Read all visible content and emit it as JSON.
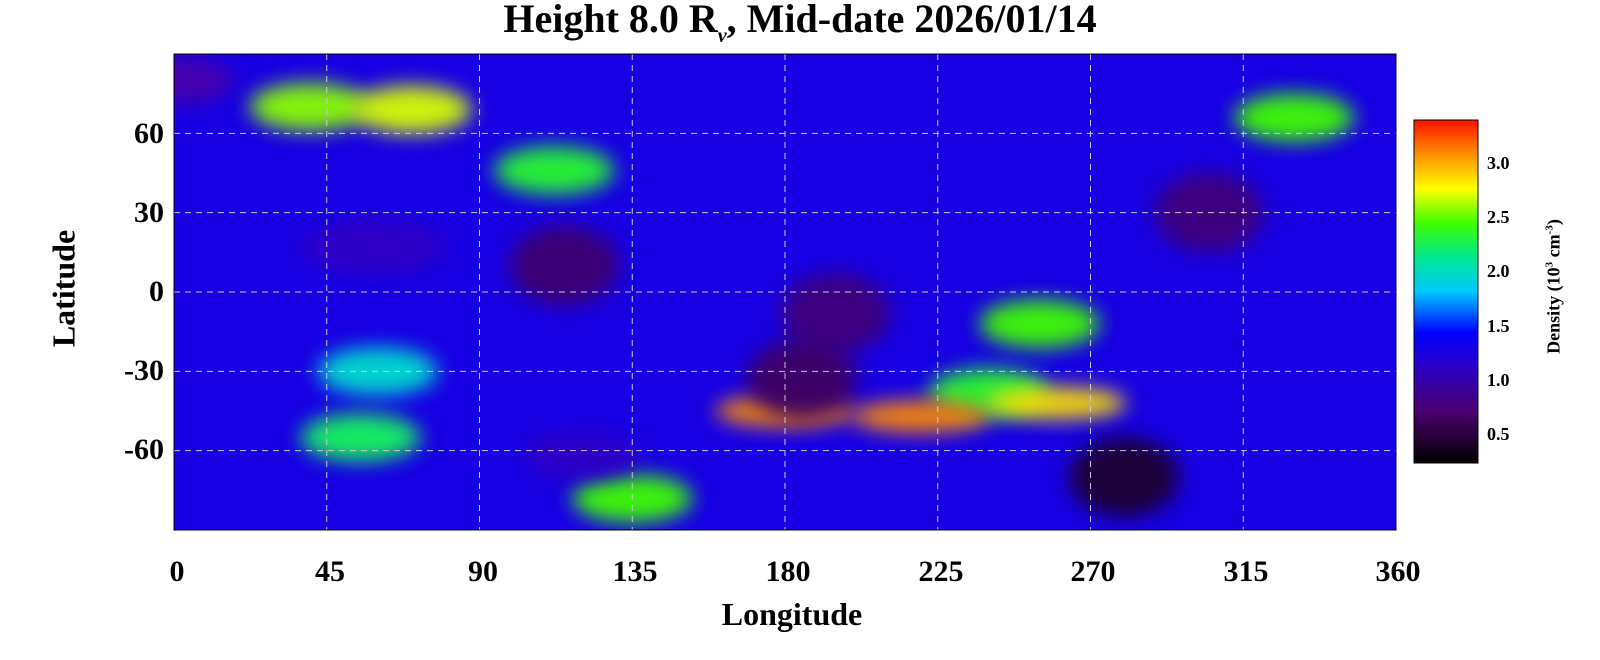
{
  "chart_data": {
    "type": "heatmap",
    "title_main": "Height 8.0 R",
    "title_subscript": "ν",
    "title_rest": ", Mid-date 2026/01/14",
    "xlabel": "Longitude",
    "ylabel": "Latitude",
    "xlim": [
      0,
      360
    ],
    "ylim": [
      -90,
      90
    ],
    "x_ticks": [
      "0",
      "45",
      "90",
      "135",
      "180",
      "225",
      "270",
      "315",
      "360"
    ],
    "y_ticks": [
      "60",
      "30",
      "0",
      "-30",
      "-60"
    ],
    "grid": true,
    "colorbar": {
      "label_prefix": "Density (10",
      "label_exp1": "3",
      "label_mid": " cm",
      "label_exp2": "-3",
      "label_suffix": ")",
      "range": [
        0.2,
        3.4
      ],
      "ticks": [
        "3.0",
        "2.5",
        "2.0",
        "1.5",
        "1.0",
        "0.5"
      ],
      "colormap": [
        "#000000",
        "#5a0088",
        "#0000ff",
        "#00c8ff",
        "#00ff64",
        "#ffff00",
        "#ff8800",
        "#ff0000"
      ]
    },
    "density_features": [
      {
        "lon": 0,
        "lat": 80,
        "value": 0.7
      },
      {
        "lon": 40,
        "lat": 70,
        "value": 2.3
      },
      {
        "lon": 70,
        "lat": 69,
        "value": 2.5
      },
      {
        "lon": 112,
        "lat": 46,
        "value": 2.0
      },
      {
        "lon": 330,
        "lat": 66,
        "value": 2.1
      },
      {
        "lon": 55,
        "lat": 17,
        "value": 0.8
      },
      {
        "lon": 63,
        "lat": 17,
        "value": 0.8
      },
      {
        "lon": 115,
        "lat": 10,
        "value": 0.45
      },
      {
        "lon": 195,
        "lat": -8,
        "value": 0.5
      },
      {
        "lon": 305,
        "lat": 30,
        "value": 0.5
      },
      {
        "lon": 255,
        "lat": -12,
        "value": 2.1
      },
      {
        "lon": 240,
        "lat": -38,
        "value": 2.0
      },
      {
        "lon": 180,
        "lat": -45,
        "value": 3.0
      },
      {
        "lon": 220,
        "lat": -47,
        "value": 3.0
      },
      {
        "lon": 260,
        "lat": -42,
        "value": 2.7
      },
      {
        "lon": 185,
        "lat": -33,
        "value": 0.4
      },
      {
        "lon": 55,
        "lat": -55,
        "value": 1.9
      },
      {
        "lon": 135,
        "lat": -78,
        "value": 2.1
      },
      {
        "lon": 60,
        "lat": -30,
        "value": 1.6
      },
      {
        "lon": 280,
        "lat": -70,
        "value": 0.3
      },
      {
        "lon": 120,
        "lat": -62,
        "value": 0.8
      }
    ]
  }
}
